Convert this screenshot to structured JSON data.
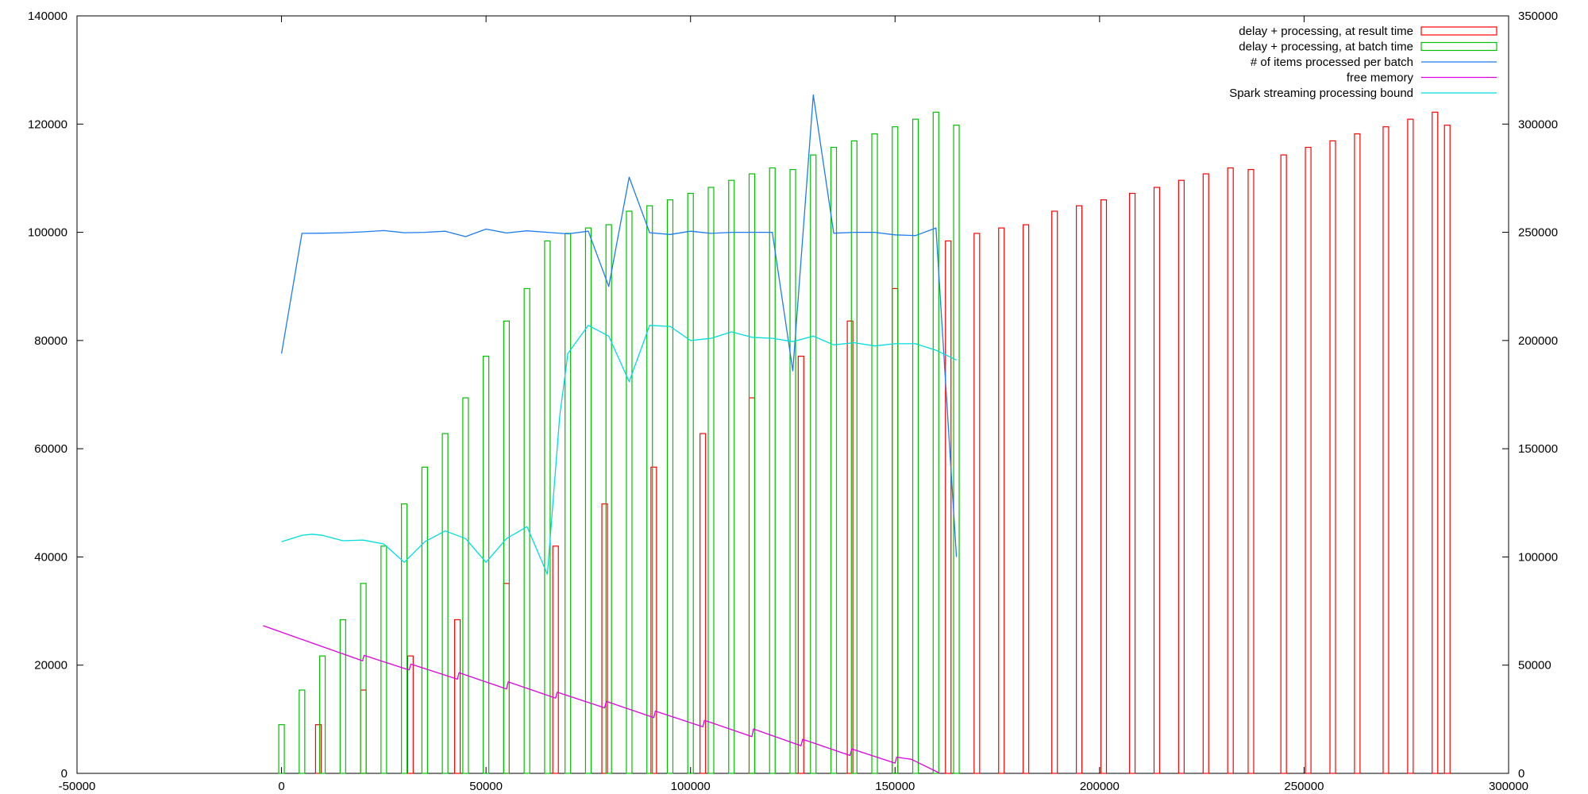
{
  "chart_data": {
    "type": "bar",
    "title": "",
    "xlabel": "",
    "ylabel": "",
    "y2label": "",
    "xlim": [
      -50000,
      300000
    ],
    "ylim": [
      0,
      140000
    ],
    "y2lim": [
      0,
      350000
    ],
    "x_ticks": [
      "-50000",
      "0",
      "50000",
      "100000",
      "150000",
      "200000",
      "250000",
      "300000"
    ],
    "y_ticks": [
      "0",
      "20000",
      "40000",
      "60000",
      "80000",
      "100000",
      "120000",
      "140000"
    ],
    "y2_ticks": [
      "0",
      "50000",
      "100000",
      "150000",
      "200000",
      "250000",
      "300000",
      "350000"
    ],
    "grid": false,
    "legend_position": "top-right",
    "series": [
      {
        "name": "delay + processing, at result time",
        "kind": "bars",
        "axis": "y1",
        "color": "#ff0000",
        "x": [
          9000,
          20000,
          31500,
          43000,
          55000,
          67000,
          79000,
          91000,
          103000,
          115000,
          127000,
          139000,
          150000,
          163000,
          170000,
          176000,
          182000,
          189000,
          195000,
          201000,
          208000,
          214000,
          220000,
          226000,
          232000,
          237000,
          245000,
          251000,
          257000,
          263000,
          270000,
          276000,
          282000,
          285000
        ],
        "values": [
          9000,
          15400,
          21700,
          28400,
          35100,
          42000,
          49800,
          56600,
          62800,
          69400,
          77100,
          83600,
          89600,
          98400,
          99800,
          100800,
          101400,
          103900,
          104900,
          106000,
          107200,
          108300,
          109600,
          110800,
          111900,
          111600,
          114300,
          115700,
          116900,
          118200,
          119500,
          120900,
          122200,
          119800
        ]
      },
      {
        "name": "delay + processing, at batch time",
        "kind": "bars",
        "axis": "y1",
        "color": "#00c000",
        "x": [
          0,
          5000,
          10000,
          15000,
          20000,
          25000,
          30000,
          35000,
          40000,
          45000,
          50000,
          55000,
          60000,
          65000,
          70000,
          75000,
          80000,
          85000,
          90000,
          95000,
          100000,
          105000,
          110000,
          115000,
          120000,
          125000,
          130000,
          135000,
          140000,
          145000,
          150000,
          155000,
          160000,
          165000
        ],
        "values": [
          9000,
          15400,
          21700,
          28400,
          35100,
          42000,
          49800,
          56600,
          62800,
          69400,
          77100,
          83600,
          89600,
          98400,
          99800,
          100800,
          101400,
          103900,
          104900,
          106000,
          107200,
          108300,
          109600,
          110800,
          111900,
          111600,
          114300,
          115700,
          116900,
          118200,
          119500,
          120900,
          122200,
          119800
        ]
      },
      {
        "name": "# of items processed per batch",
        "kind": "line",
        "axis": "y2",
        "color": "#1c7cf0",
        "x": [
          0,
          5000,
          10000,
          15000,
          20000,
          25000,
          30000,
          35000,
          40000,
          45000,
          50000,
          55000,
          60000,
          65000,
          70000,
          75000,
          80000,
          85000,
          90000,
          95000,
          100000,
          105000,
          110000,
          115000,
          120000,
          125000,
          130000,
          135000,
          140000,
          145000,
          150000,
          155000,
          160000,
          165000
        ],
        "values": [
          194000,
          249500,
          249600,
          249800,
          250200,
          250800,
          249800,
          250000,
          250500,
          248000,
          251500,
          249700,
          250700,
          250000,
          249300,
          250500,
          225000,
          275500,
          249800,
          249000,
          250500,
          249500,
          250000,
          250000,
          250000,
          186000,
          313500,
          249600,
          250000,
          250000,
          248800,
          248500,
          252000,
          100000
        ]
      },
      {
        "name": "free memory",
        "kind": "line",
        "axis": "y1",
        "color": "#e000e0",
        "x": [
          -4500,
          19800,
          20200,
          31200,
          31600,
          43000,
          43400,
          55000,
          55400,
          67000,
          67400,
          79000,
          79400,
          91000,
          91400,
          103000,
          103400,
          115000,
          115400,
          127000,
          127400,
          139000,
          139400,
          150000,
          150400,
          154000,
          161000
        ],
        "values": [
          27300,
          20800,
          21800,
          19100,
          20200,
          17400,
          18600,
          15600,
          16900,
          13900,
          15000,
          12100,
          13300,
          10300,
          11500,
          8600,
          9800,
          6800,
          8200,
          5100,
          6300,
          3300,
          4500,
          1900,
          3000,
          2600,
          0
        ]
      },
      {
        "name": "Spark streaming processing bound",
        "kind": "line",
        "axis": "y2",
        "color": "#00dcdc",
        "x": [
          0,
          5000,
          7500,
          10000,
          15000,
          20000,
          25000,
          30000,
          35000,
          40000,
          45000,
          50000,
          55000,
          60000,
          65000,
          68000,
          70000,
          75000,
          80000,
          85000,
          90000,
          95000,
          100000,
          105000,
          110000,
          115000,
          120000,
          125000,
          130000,
          135000,
          140000,
          145000,
          150000,
          155000,
          160000,
          165000
        ],
        "values": [
          107000,
          110000,
          110500,
          110000,
          107500,
          107800,
          106000,
          97500,
          107000,
          112000,
          108500,
          97500,
          108500,
          114000,
          92000,
          165000,
          194000,
          207000,
          202000,
          181000,
          207000,
          206500,
          200000,
          201000,
          204000,
          201500,
          201000,
          199500,
          202000,
          198000,
          199000,
          197500,
          198500,
          198500,
          195500,
          191000
        ]
      }
    ]
  }
}
